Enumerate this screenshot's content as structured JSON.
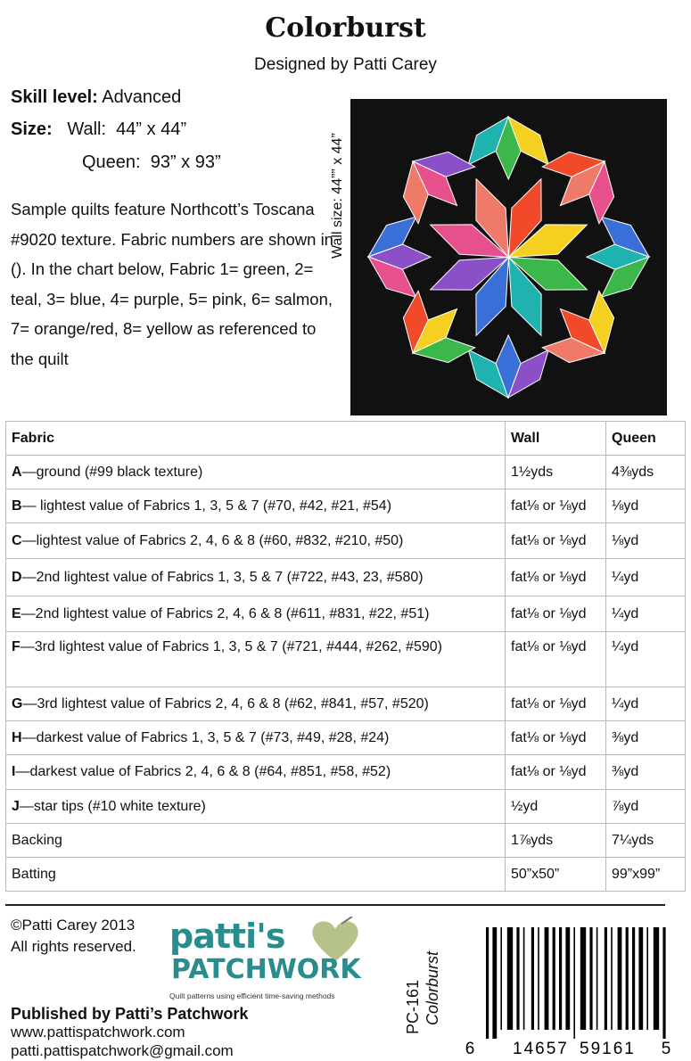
{
  "header": {
    "title": "Colorburst",
    "subtitle": "Designed by Patti Carey"
  },
  "specs": {
    "skill_label": "Skill level:",
    "skill_value": "Advanced",
    "size_label": "Size:",
    "wall": "Wall:  44” x 44”",
    "queen": "Queen:  93” x 93”"
  },
  "description": "Sample quilts feature Northcott’s Toscana #9020 texture.  Fabric numbers are shown in ().  In the chart below, Fabric 1= green, 2= teal, 3= blue, 4= purple, 5= pink, 6= salmon, 7= orange/red, 8= yellow as referenced to the quilt",
  "image": {
    "caption": "Wall size: 44”” x 44”"
  },
  "table": {
    "header": [
      "Fabric",
      "Wall",
      "Queen"
    ],
    "rows": [
      {
        "letter": "A",
        "label": "—ground (#99 black texture)",
        "wall": "1½yds",
        "queen": "4⅜yds"
      },
      {
        "letter": "B",
        "label": "— lightest value of Fabrics 1, 3, 5 & 7 (#70, #42, #21, #54)",
        "wall": "fat⅛ or ⅛yd",
        "queen": "⅛yd"
      },
      {
        "letter": "C",
        "label": "—lightest value of Fabrics 2, 4, 6 & 8 (#60, #832, #210, #50)",
        "wall": "fat⅛ or ⅛yd",
        "queen": "⅛yd"
      },
      {
        "letter": "D",
        "label": "—2nd lightest value of Fabrics 1, 3, 5 & 7 (#722, #43, 23, #580)",
        "wall": "fat⅛ or ⅛yd",
        "queen": "¼yd"
      },
      {
        "letter": "E",
        "label": "—2nd lightest value of Fabrics 2, 4, 6 & 8 (#611, #831, #22, #51)",
        "wall": "fat⅛ or ⅛yd",
        "queen": "¼yd"
      },
      {
        "letter": "F",
        "label": "—3rd lightest value of Fabrics 1, 3, 5 & 7 (#721, #444, #262, #590)",
        "wall": "fat⅛ or ⅛yd",
        "queen": "¼yd"
      },
      {
        "letter": "G",
        "label": "—3rd lightest value of Fabrics 2, 4, 6 & 8 (#62, #841, #57, #520)",
        "wall": "fat⅛ or ⅛yd",
        "queen": "¼yd"
      },
      {
        "letter": "H",
        "label": "—darkest value of Fabrics 1, 3, 5 & 7 (#73, #49, #28, #24)",
        "wall": "fat⅛ or ⅛yd",
        "queen": "⅜yd"
      },
      {
        "letter": "I",
        "label": "—darkest value of Fabrics 2, 4, 6 & 8 (#64, #851, #58, #52)",
        "wall": "fat⅛ or ⅛yd",
        "queen": "⅜yd"
      },
      {
        "letter": "J",
        "label": "—star tips (#10 white texture)",
        "wall": "½yd",
        "queen": "⅞yd"
      },
      {
        "label": "Backing",
        "wall": "1⅞yds",
        "queen": "7¼yds"
      },
      {
        "label": "Batting",
        "wall": "50”x50”",
        "queen": "99”x99”"
      }
    ]
  },
  "footer": {
    "copyright": "©Patti Carey 2013",
    "rights": "All rights reserved.",
    "logo": {
      "top": "patti's",
      "bottom": "PATCHWORK",
      "tagline": "Quilt patterns using efficient time-saving methods"
    },
    "publisher": "Published by Patti’s Patchwork",
    "website": "www.pattispatchwork.com",
    "email": "patti.pattispatchwork@gmail.com",
    "code": "PC-161",
    "code_title": "Colorburst",
    "barcode_digits": [
      "6",
      "14657",
      "59161",
      "5"
    ]
  }
}
